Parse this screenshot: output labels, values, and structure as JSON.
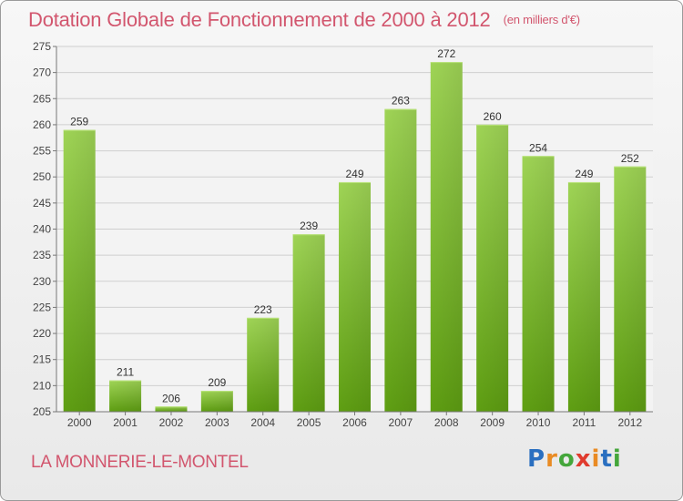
{
  "title": "Dotation Globale de Fonctionnement de 2000 à 2012",
  "unit": "(en milliers d'€)",
  "commune": "LA MONNERIE-LE-MONTEL",
  "logo": {
    "letters": [
      "P",
      "r",
      "o",
      "x",
      "i",
      "t",
      "i"
    ],
    "colors": [
      "#2a6fc0",
      "#e98b24",
      "#44a63b",
      "#e03b2e",
      "#e98b24",
      "#2a6fc0",
      "#44a63b"
    ]
  },
  "chart_data": {
    "type": "bar",
    "categories": [
      "2000",
      "2001",
      "2002",
      "2003",
      "2004",
      "2005",
      "2006",
      "2007",
      "2008",
      "2009",
      "2010",
      "2011",
      "2012"
    ],
    "values": [
      259,
      211,
      206,
      209,
      223,
      239,
      249,
      263,
      272,
      260,
      254,
      249,
      252
    ],
    "ylim": [
      205,
      275
    ],
    "yticks": [
      205,
      210,
      215,
      220,
      225,
      230,
      235,
      240,
      245,
      250,
      255,
      260,
      265,
      270,
      275
    ],
    "grid": true,
    "bar_color": "#7cbf2c"
  }
}
